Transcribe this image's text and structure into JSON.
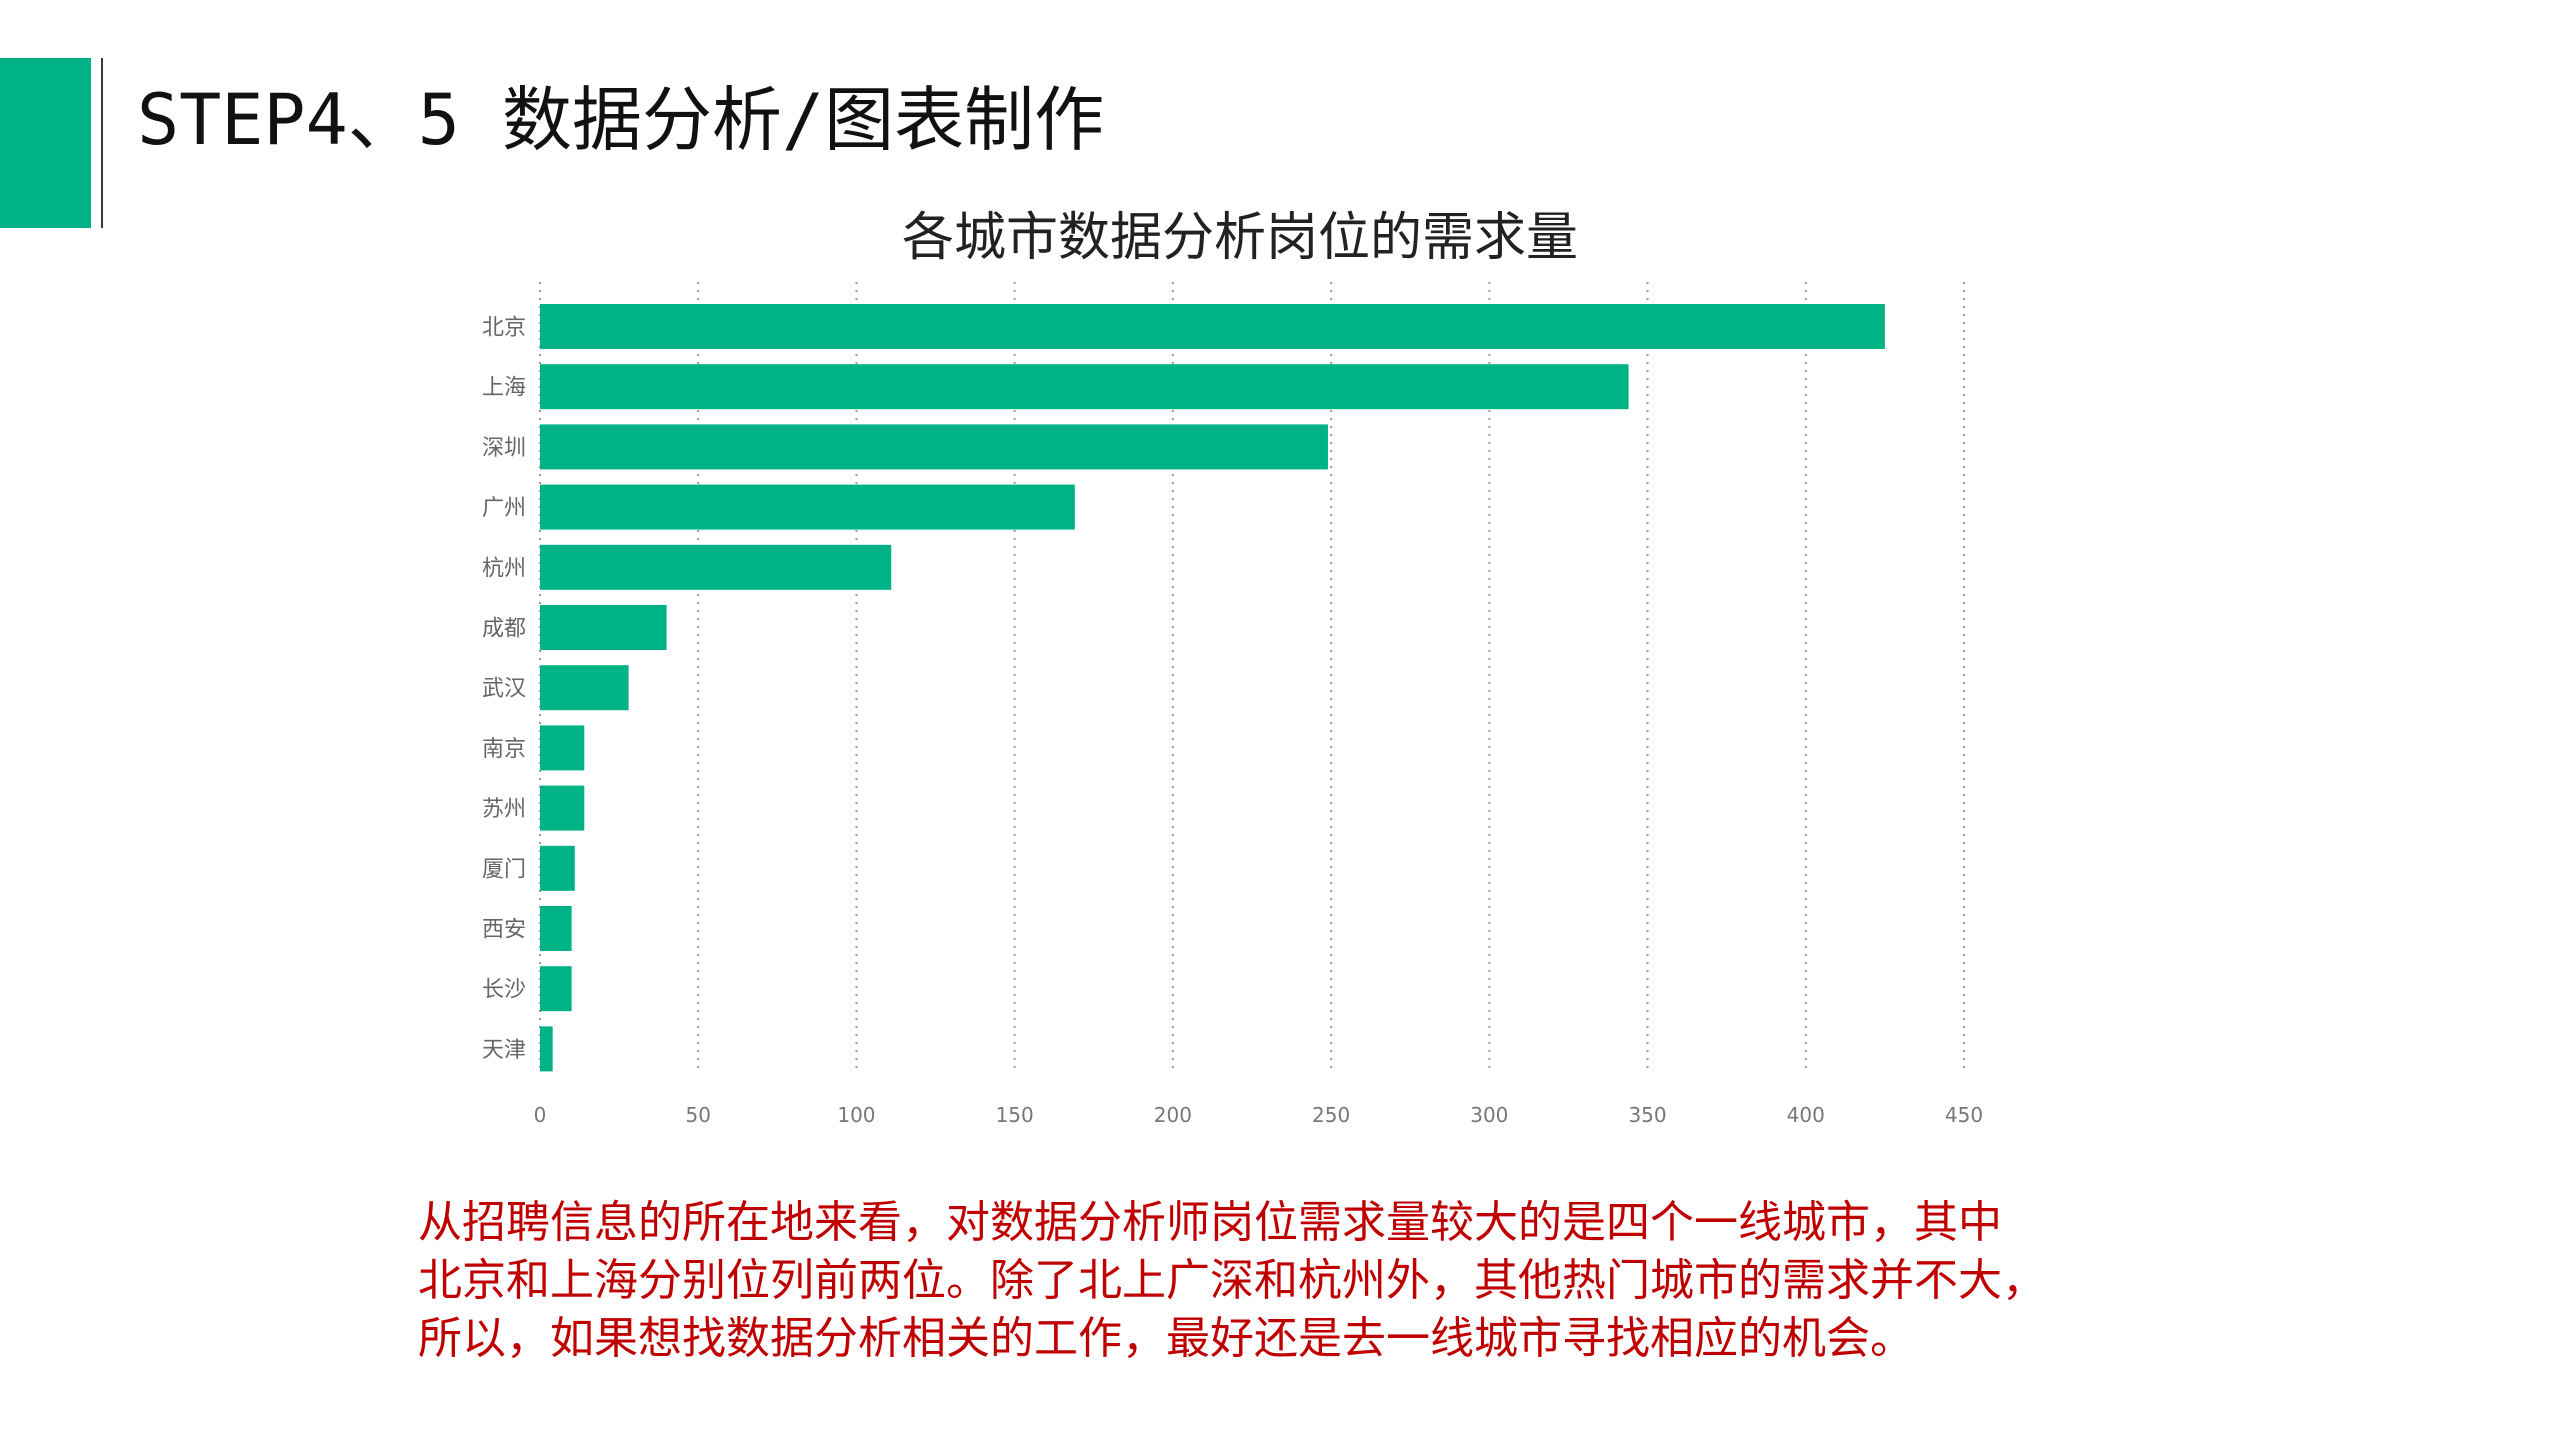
{
  "header": {
    "title": "STEP4、5 数据分析/图表制作",
    "accent_color": "#00B386"
  },
  "chart_data": {
    "type": "bar",
    "orientation": "horizontal",
    "title": "各城市数据分析岗位的需求量",
    "categories": [
      "北京",
      "上海",
      "深圳",
      "广州",
      "杭州",
      "成都",
      "武汉",
      "南京",
      "苏州",
      "厦门",
      "西安",
      "长沙",
      "天津"
    ],
    "values": [
      425,
      344,
      249,
      169,
      111,
      40,
      28,
      14,
      14,
      11,
      10,
      10,
      4
    ],
    "xlim": [
      0,
      450
    ],
    "xticks": [
      0,
      50,
      100,
      150,
      200,
      250,
      300,
      350,
      400,
      450
    ],
    "xgrid": "dotted",
    "bar_color": "#00B386",
    "xlabel": "",
    "ylabel": ""
  },
  "note": {
    "lines": [
      "从招聘信息的所在地来看，对数据分析师岗位需求量较大的是四个一线城市，其中",
      "北京和上海分别位列前两位。除了北上广深和杭州外，其他热门城市的需求并不大，",
      "所以，如果想找数据分析相关的工作，最好还是去一线城市寻找相应的机会。"
    ],
    "color": "#C00000"
  }
}
